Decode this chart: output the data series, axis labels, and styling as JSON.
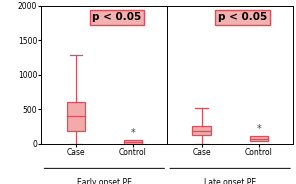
{
  "left_panel": {
    "label": "Early onset PE",
    "boxes": [
      {
        "name": "Case",
        "whisker_low": 0,
        "q1": 175,
        "median": 400,
        "q3": 600,
        "whisker_high": 1280,
        "asterisk": false
      },
      {
        "name": "Control",
        "whisker_low": null,
        "q1": 0,
        "median": 25,
        "q3": 55,
        "whisker_high": null,
        "asterisk": true
      }
    ],
    "pvalue": "p < 0.05"
  },
  "right_panel": {
    "label": "Late onset PE",
    "boxes": [
      {
        "name": "Case",
        "whisker_low": 0,
        "q1": 130,
        "median": 175,
        "q3": 255,
        "whisker_high": 520,
        "asterisk": false
      },
      {
        "name": "Control",
        "whisker_low": null,
        "q1": 40,
        "median": 70,
        "q3": 105,
        "whisker_high": null,
        "asterisk": true
      }
    ],
    "pvalue": "p < 0.05"
  },
  "ylim": [
    0,
    2000
  ],
  "yticks": [
    0,
    500,
    1000,
    1500,
    2000
  ],
  "box_color": "#d94f5c",
  "box_facecolor": "#f2aaaa",
  "median_color": "#d94f5c",
  "asterisk_color": "#444444",
  "pvalue_bg": "#f5b0b0",
  "pvalue_edge": "#d94f5c",
  "background_color": "#ffffff",
  "figsize": [
    2.96,
    1.84
  ],
  "dpi": 100
}
